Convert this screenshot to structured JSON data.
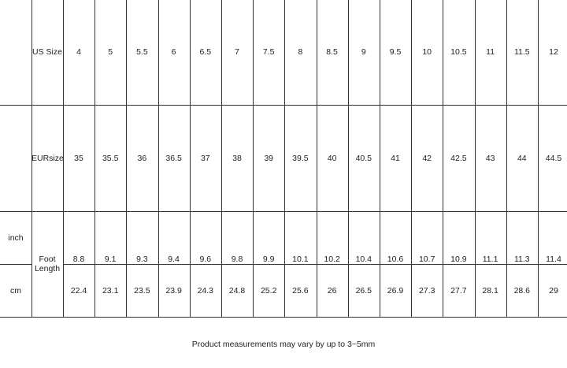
{
  "table": {
    "us_label": "US Size",
    "eur_label": "EURsize",
    "foot_label": "Foot Length",
    "inch_label": "inch",
    "cm_label": "cm",
    "us_sizes": [
      "4",
      "5",
      "5.5",
      "6",
      "6.5",
      "7",
      "7.5",
      "8",
      "8.5",
      "9",
      "9.5",
      "10",
      "10.5",
      "11",
      "11.5",
      "12"
    ],
    "eur_sizes": [
      "35",
      "35.5",
      "36",
      "36.5",
      "37",
      "38",
      "39",
      "39.5",
      "40",
      "40.5",
      "41",
      "42",
      "42.5",
      "43",
      "44",
      "44.5"
    ],
    "inch": [
      "8.8",
      "9.1",
      "9.3",
      "9.4",
      "9.6",
      "9.8",
      "9.9",
      "10.1",
      "10.2",
      "10.4",
      "10.6",
      "10.7",
      "10.9",
      "11.1",
      "11.3",
      "11.4"
    ],
    "cm": [
      "22.4",
      "23.1",
      "23.5",
      "23.9",
      "24.3",
      "24.8",
      "25.2",
      "25.6",
      "26",
      "26.5",
      "26.9",
      "27.3",
      "27.7",
      "28.1",
      "28.6",
      "29"
    ]
  },
  "note": "Product measurements may vary by up to 3~5mm"
}
